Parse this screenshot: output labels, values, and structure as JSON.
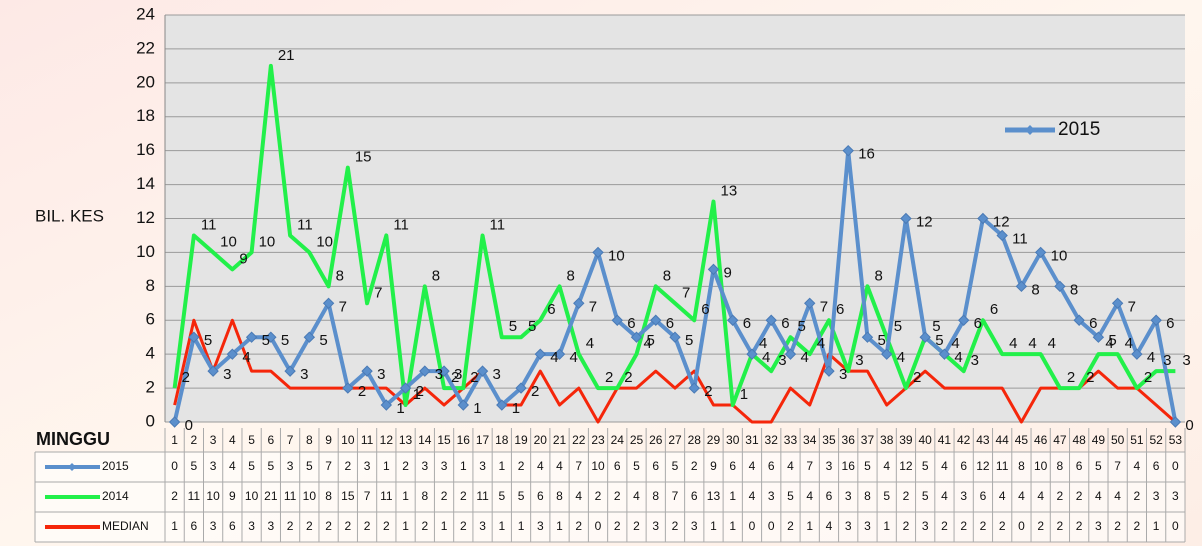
{
  "chart_data": {
    "type": "line",
    "y_axis_label": "BIL. KES",
    "x_axis_label": "MINGGU",
    "categories": [
      "1",
      "2",
      "3",
      "4",
      "5",
      "6",
      "7",
      "8",
      "9",
      "10",
      "11",
      "12",
      "13",
      "14",
      "15",
      "16",
      "17",
      "18",
      "19",
      "20",
      "21",
      "22",
      "23",
      "24",
      "25",
      "26",
      "27",
      "28",
      "29",
      "30",
      "31",
      "32",
      "33",
      "34",
      "35",
      "36",
      "37",
      "38",
      "39",
      "40",
      "41",
      "42",
      "43",
      "44",
      "45",
      "46",
      "47",
      "48",
      "49",
      "50",
      "51",
      "52",
      "53"
    ],
    "series": [
      {
        "name": "2015",
        "color": "#5b8fcc",
        "marker": "diamond",
        "data_labels": true,
        "values": [
          0,
          5,
          3,
          4,
          5,
          5,
          3,
          5,
          7,
          2,
          3,
          1,
          2,
          3,
          3,
          1,
          3,
          1,
          2,
          4,
          4,
          7,
          10,
          6,
          5,
          6,
          5,
          2,
          9,
          6,
          4,
          6,
          4,
          7,
          3,
          16,
          5,
          4,
          12,
          5,
          4,
          6,
          12,
          11,
          8,
          10,
          8,
          6,
          5,
          7,
          4,
          6,
          0
        ]
      },
      {
        "name": "2014",
        "color": "#22f04a",
        "data_labels": true,
        "values": [
          2,
          11,
          10,
          9,
          10,
          21,
          11,
          10,
          8,
          15,
          7,
          11,
          1,
          8,
          2,
          2,
          11,
          5,
          5,
          6,
          8,
          4,
          2,
          2,
          4,
          8,
          7,
          6,
          13,
          1,
          4,
          3,
          5,
          4,
          6,
          3,
          8,
          5,
          2,
          5,
          4,
          3,
          6,
          4,
          4,
          4,
          2,
          2,
          4,
          4,
          2,
          3,
          3
        ]
      },
      {
        "name": "MEDIAN",
        "color": "#f5260a",
        "data_labels": false,
        "values": [
          1,
          6,
          3,
          6,
          3,
          3,
          2,
          2,
          2,
          2,
          2,
          2,
          1,
          2,
          1,
          2,
          3,
          1,
          1,
          3,
          1,
          2,
          0,
          2,
          2,
          3,
          2,
          3,
          1,
          1,
          0,
          0,
          2,
          1,
          4,
          3,
          3,
          1,
          2,
          3,
          2,
          2,
          2,
          2,
          0,
          2,
          2,
          2,
          3,
          2,
          2,
          1,
          0
        ]
      }
    ],
    "legend_series": [
      0
    ],
    "ylim": [
      0,
      24
    ],
    "yticks": [
      0,
      2,
      4,
      6,
      8,
      10,
      12,
      14,
      16,
      18,
      20,
      22,
      24
    ],
    "grid": true,
    "data_table": true
  }
}
